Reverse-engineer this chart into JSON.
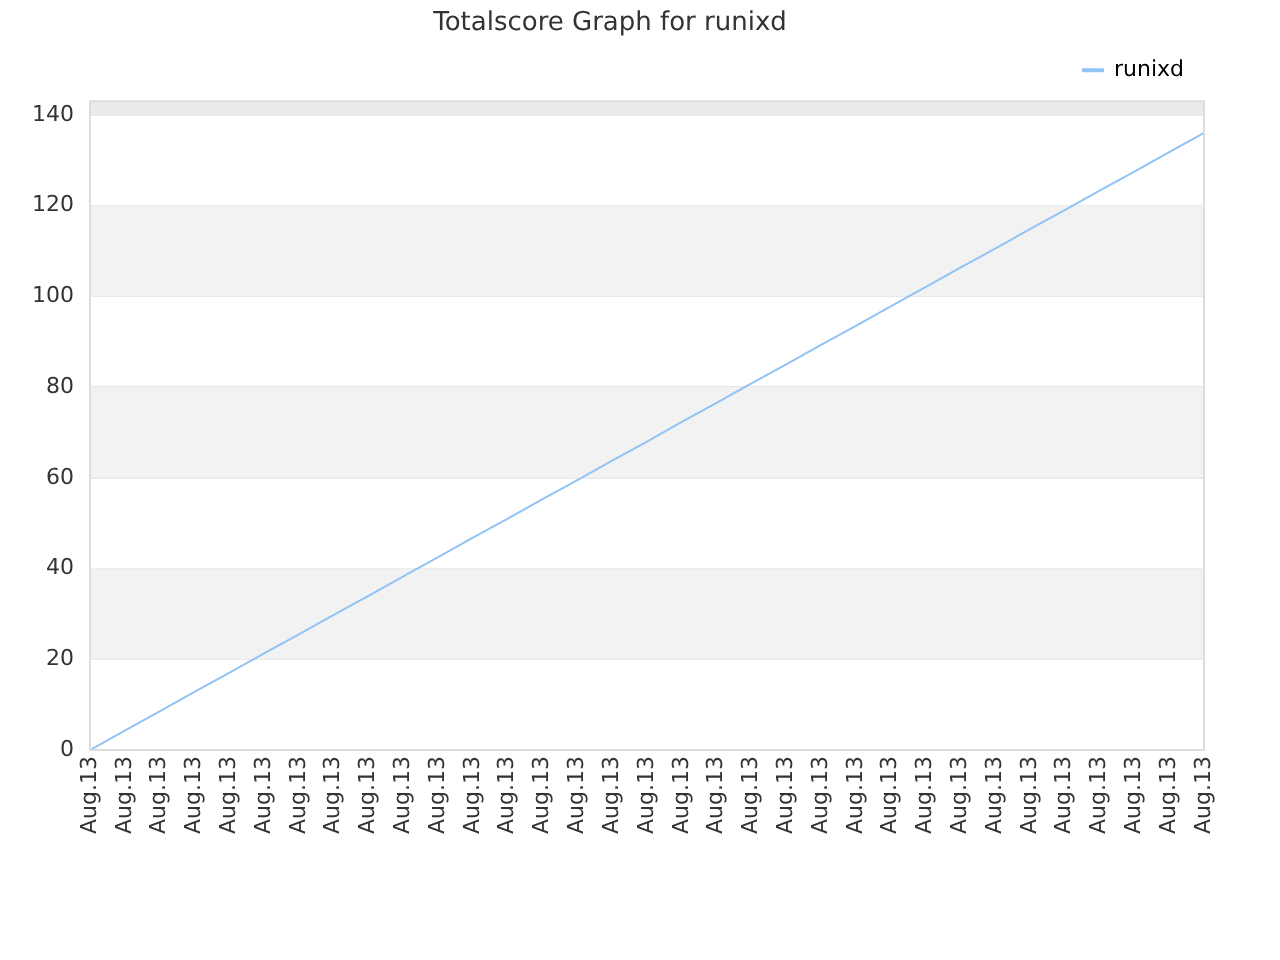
{
  "chart_data": {
    "type": "line",
    "title": "Totalscore Graph for runixd",
    "categories": [
      "Aug.13",
      "Aug.13",
      "Aug.13",
      "Aug.13",
      "Aug.13",
      "Aug.13",
      "Aug.13",
      "Aug.13",
      "Aug.13",
      "Aug.13",
      "Aug.13",
      "Aug.13",
      "Aug.13",
      "Aug.13",
      "Aug.13",
      "Aug.13",
      "Aug.13",
      "Aug.13",
      "Aug.13",
      "Aug.13",
      "Aug.13",
      "Aug.13",
      "Aug.13",
      "Aug.13",
      "Aug.13",
      "Aug.13",
      "Aug.13",
      "Aug.13",
      "Aug.13",
      "Aug.13",
      "Aug.13",
      "Aug.13",
      "Aug.13"
    ],
    "series": [
      {
        "name": "runixd",
        "color": "#90c4f5",
        "values": [
          0,
          4.3,
          8.5,
          12.8,
          17,
          21.3,
          25.5,
          29.8,
          34,
          38.3,
          42.5,
          46.8,
          51,
          55.3,
          59.5,
          63.8,
          68,
          72.3,
          76.5,
          80.8,
          85,
          89.3,
          93.5,
          97.8,
          102,
          106.3,
          110.5,
          114.8,
          119,
          123.3,
          127.5,
          131.8,
          136
        ]
      }
    ],
    "ylim": [
      0,
      143
    ],
    "yticks": [
      0,
      20,
      40,
      60,
      80,
      100,
      120,
      140
    ],
    "bands": [
      {
        "axis": "y",
        "from": 20,
        "to": 40,
        "color": "#f2f2f2"
      },
      {
        "axis": "y",
        "from": 60,
        "to": 80,
        "color": "#f2f2f2"
      },
      {
        "axis": "y",
        "from": 100,
        "to": 120,
        "color": "#f2f2f2"
      },
      {
        "axis": "y",
        "from": 140,
        "to": 143,
        "color": "#ebebeb"
      }
    ],
    "grid": "y",
    "legend": "top right",
    "marker": "none",
    "line_style": "solid"
  }
}
